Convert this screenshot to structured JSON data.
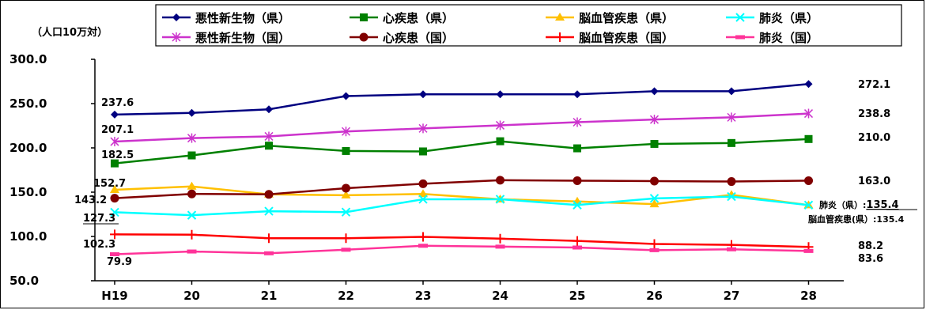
{
  "chart_data": {
    "type": "line",
    "ylabel": "（人口10万対）",
    "categories": [
      "H19",
      "20",
      "21",
      "22",
      "23",
      "24",
      "25",
      "26",
      "27",
      "28"
    ],
    "ylim": [
      50,
      300
    ],
    "yticks": [
      "50.0",
      "100.0",
      "150.0",
      "200.0",
      "250.0",
      "300.0"
    ],
    "legend_position": "top",
    "grid": false,
    "series": [
      {
        "name": "悪性新生物（県）",
        "color": "#000080",
        "marker": "diamond",
        "values": [
          237.6,
          239.5,
          243.5,
          258.5,
          260.5,
          260.5,
          260.5,
          264.0,
          264.0,
          272.1
        ]
      },
      {
        "name": "心疾患（県）",
        "color": "#008000",
        "marker": "square",
        "values": [
          182.5,
          191.5,
          202.5,
          196.5,
          196.0,
          207.5,
          199.5,
          204.5,
          205.5,
          210.0
        ]
      },
      {
        "name": "脳血管疾患（県）",
        "color": "#ffc000",
        "marker": "triangle",
        "values": [
          152.7,
          156.5,
          147.5,
          146.5,
          148.0,
          142.0,
          139.5,
          136.5,
          147.0,
          135.4
        ]
      },
      {
        "name": "肺炎（県）",
        "color": "#00ffff",
        "marker": "x",
        "values": [
          127.3,
          124.0,
          128.5,
          127.5,
          142.0,
          142.0,
          135.5,
          143.0,
          145.0,
          135.4
        ]
      },
      {
        "name": "悪性新生物（国）",
        "color": "#cc33cc",
        "marker": "asterisk",
        "values": [
          207.1,
          211.0,
          213.0,
          218.5,
          222.0,
          225.5,
          229.0,
          232.0,
          234.5,
          238.8
        ]
      },
      {
        "name": "心疾患（国）",
        "color": "#800000",
        "marker": "circle",
        "values": [
          143.2,
          148.0,
          147.5,
          154.5,
          159.5,
          163.5,
          163.0,
          162.5,
          162.0,
          163.0
        ]
      },
      {
        "name": "脳血管疾患（国）",
        "color": "#ff0000",
        "marker": "plus",
        "values": [
          102.3,
          102.0,
          98.0,
          98.0,
          99.5,
          97.5,
          95.0,
          91.5,
          90.5,
          88.2
        ]
      },
      {
        "name": "肺炎（国）",
        "color": "#ff3399",
        "marker": "dash",
        "values": [
          79.9,
          83.0,
          81.0,
          85.0,
          89.5,
          88.5,
          87.5,
          84.5,
          85.5,
          83.6
        ]
      }
    ],
    "start_labels": [
      "237.6",
      "207.1",
      "182.5",
      "152.7",
      "143.2",
      "127.3",
      "102.3",
      "79.9"
    ],
    "end_labels": [
      "272.1",
      "238.8",
      "210.0",
      "163.0",
      "88.2",
      "83.6"
    ],
    "end_annotation_pneumonia": {
      "prefix": "肺炎（県）:",
      "value": "135.4"
    },
    "end_annotation_cerebro": "脳血管疾患(県）:135.4"
  }
}
